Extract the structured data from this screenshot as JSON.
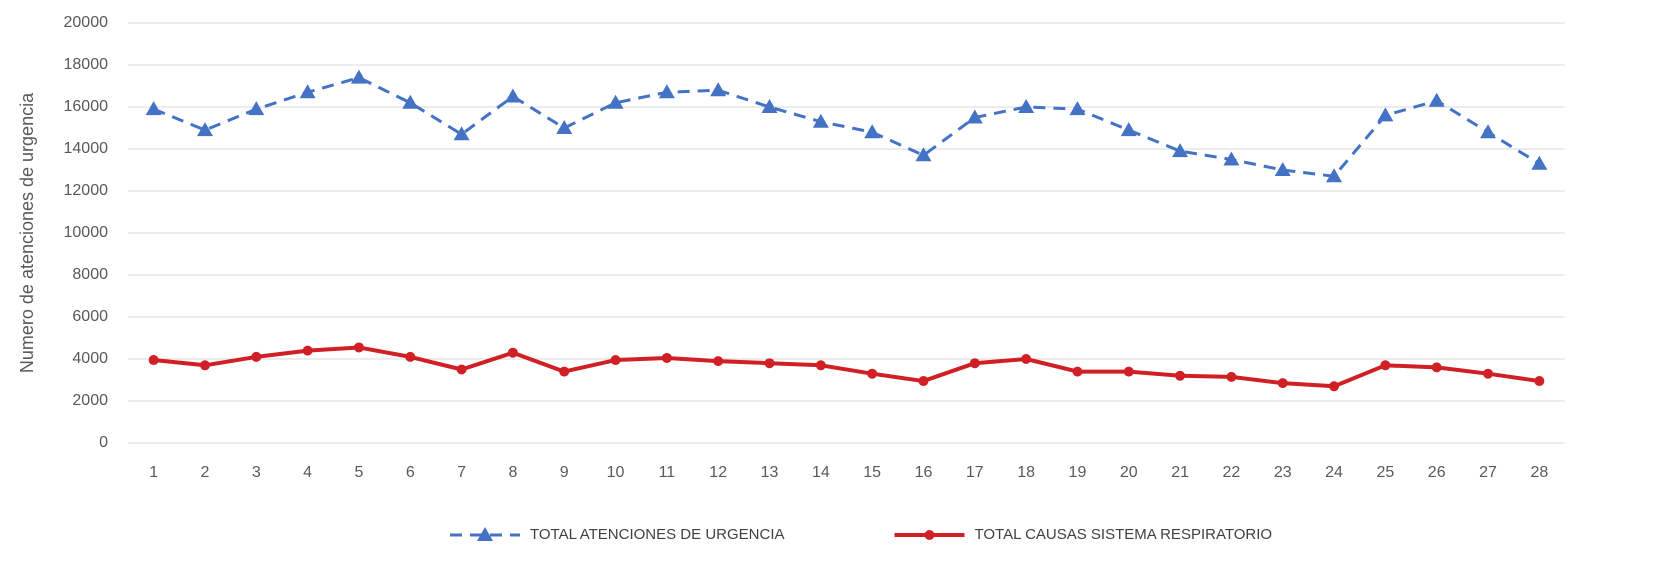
{
  "chart_data": {
    "type": "line",
    "y_label": "Numero de atenciones de urgencia",
    "categories": [
      "1",
      "2",
      "3",
      "4",
      "5",
      "6",
      "7",
      "8",
      "9",
      "10",
      "11",
      "12",
      "13",
      "14",
      "15",
      "16",
      "17",
      "18",
      "19",
      "20",
      "21",
      "22",
      "23",
      "24",
      "25",
      "26",
      "27",
      "28"
    ],
    "series": [
      {
        "name": "TOTAL ATENCIONES DE URGENCIA",
        "color": "#4472c4",
        "marker": "triangle",
        "dashed": true,
        "values": [
          15900,
          14900,
          15900,
          16700,
          17400,
          16200,
          14700,
          16500,
          15000,
          16200,
          16700,
          16800,
          16000,
          15300,
          14800,
          13700,
          15500,
          16000,
          15900,
          14900,
          13900,
          13500,
          13000,
          12700,
          15600,
          16300,
          14800,
          13300
        ]
      },
      {
        "name": "TOTAL CAUSAS SISTEMA RESPIRATORIO",
        "color": "#d01f25",
        "marker": "circle",
        "dashed": false,
        "values": [
          3950,
          3700,
          4100,
          4400,
          4550,
          4100,
          3500,
          4300,
          3400,
          3950,
          4050,
          3900,
          3800,
          3700,
          3300,
          2950,
          3800,
          4000,
          3400,
          3400,
          3200,
          3150,
          2850,
          2700,
          3700,
          3600,
          3300,
          2950
        ]
      }
    ],
    "ylim": [
      0,
      20000
    ],
    "yticks": [
      0,
      2000,
      4000,
      6000,
      8000,
      10000,
      12000,
      14000,
      16000,
      18000,
      20000
    ],
    "grid": true,
    "legend": "bottom"
  }
}
